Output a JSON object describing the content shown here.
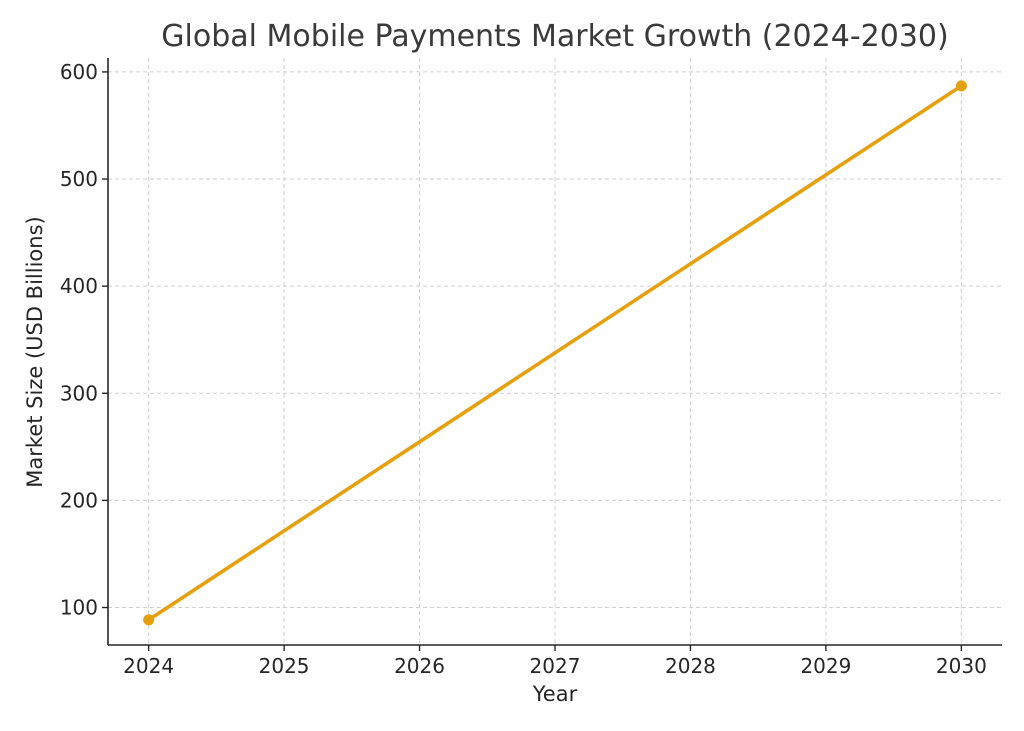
{
  "chart_data": {
    "type": "line",
    "title": "Global Mobile Payments Market Growth (2024-2030)",
    "xlabel": "Year",
    "ylabel": "Market Size (USD Billions)",
    "x": [
      2024,
      2030
    ],
    "x_ticks": [
      "2024",
      "2025",
      "2026",
      "2027",
      "2028",
      "2029",
      "2030"
    ],
    "y_ticks": [
      "100",
      "200",
      "300",
      "400",
      "500",
      "600"
    ],
    "xlim": [
      2023.7,
      2030.3
    ],
    "ylim": [
      65,
      613
    ],
    "grid": true,
    "series": [
      {
        "values": [
          88.5,
          587
        ],
        "color": "#E5A00D"
      }
    ]
  }
}
